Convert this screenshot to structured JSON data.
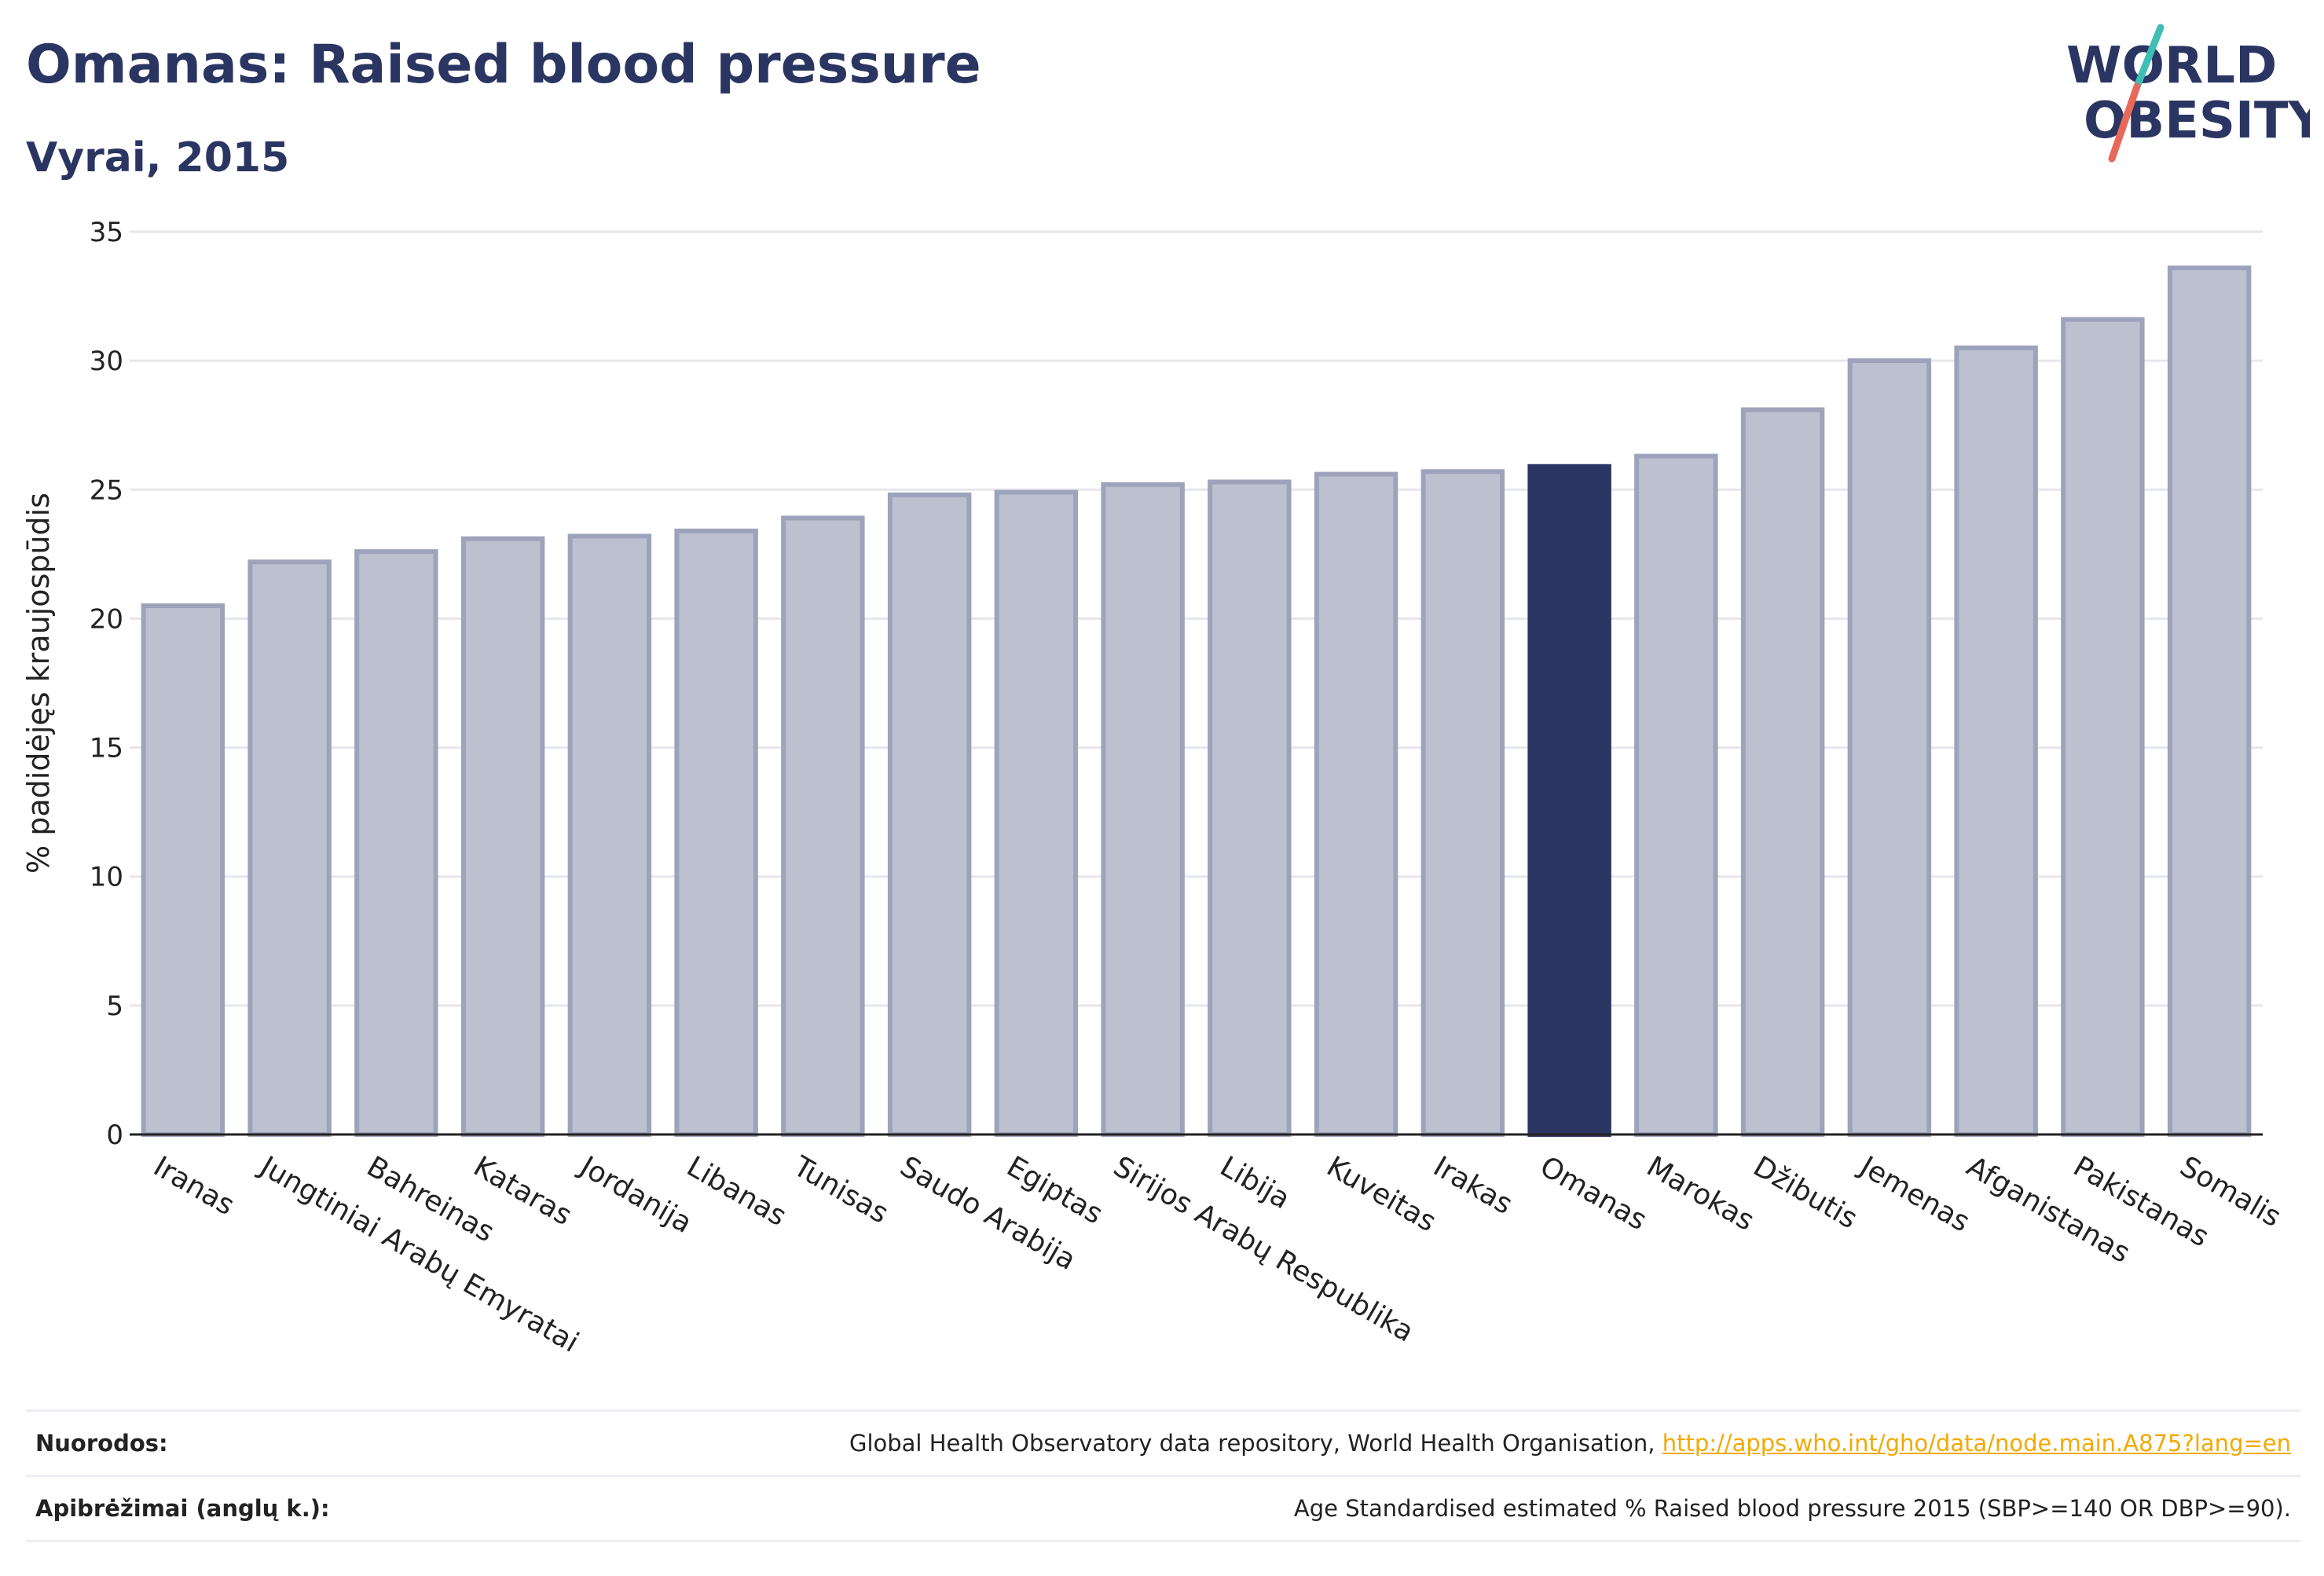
{
  "header": {
    "title": "Omanas: Raised blood pressure",
    "subtitle": "Vyrai, 2015"
  },
  "logo": {
    "line1": "WORLD",
    "line2": "OBESITY",
    "colors": {
      "text": "#2a3562",
      "slash_top": "#3fbfb4",
      "slash_bottom": "#e8685a"
    }
  },
  "colors": {
    "bar": "#bcc0cf",
    "bar_border": "#9da3bb",
    "highlight": "#2a3562",
    "grid": "#e6e7ec",
    "axis": "#222222"
  },
  "chart_data": {
    "type": "bar",
    "title": "Omanas: Raised blood pressure",
    "subtitle": "Vyrai, 2015",
    "xlabel": "",
    "ylabel": "% padidėjęs kraujospūdis",
    "ylim": [
      0,
      35
    ],
    "yticks": [
      0,
      5,
      10,
      15,
      20,
      25,
      30,
      35
    ],
    "grid": true,
    "highlight": "Omanas",
    "categories": [
      "Iranas",
      "Jungtiniai Arabų Emyratai",
      "Bahreinas",
      "Kataras",
      "Jordanija",
      "Libanas",
      "Tunisas",
      "Saudo Arabija",
      "Egiptas",
      "Sirijos Arabų Respublika",
      "Libija",
      "Kuveitas",
      "Irakas",
      "Omanas",
      "Marokas",
      "Džibutis",
      "Jemenas",
      "Afganistanas",
      "Pakistanas",
      "Somalis"
    ],
    "values": [
      20.5,
      22.2,
      22.6,
      23.1,
      23.2,
      23.4,
      23.9,
      24.8,
      24.9,
      25.2,
      25.3,
      25.6,
      25.7,
      25.9,
      26.3,
      28.1,
      30.0,
      30.5,
      31.6,
      33.6
    ]
  },
  "footer": {
    "sources_label": "Nuorodos:",
    "sources_text": "Global Health Observatory data repository, World Health Organisation,",
    "sources_link": "http://apps.who.int/gho/data/node.main.A875?lang=en",
    "definitions_label": "Apibrėžimai (anglų k.):",
    "definitions_text": "Age Standardised estimated % Raised blood pressure 2015 (SBP>=140 OR DBP>=90)."
  }
}
